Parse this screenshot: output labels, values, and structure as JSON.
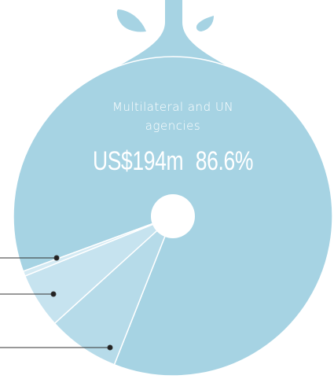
{
  "chart_data": {
    "type": "donut",
    "categories": [
      "Multilateral and UN agencies",
      null,
      null,
      null
    ],
    "values": [
      86.6,
      7.3,
      5.6,
      0.5
    ],
    "value_labels": [
      "86.6%",
      null,
      null,
      null
    ],
    "amounts": [
      194,
      null,
      null,
      null
    ],
    "amount_labels": [
      "US$194m",
      null,
      null,
      null
    ],
    "colors": [
      "#a6d3e3",
      "#b6dbe9",
      "#c6e3ef",
      "#d4eaf3"
    ]
  }
}
